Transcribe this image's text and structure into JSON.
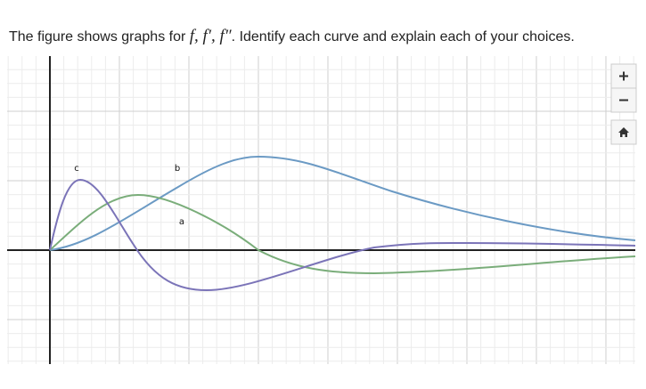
{
  "question": {
    "text_before": "The figure shows graphs for ",
    "math": "f, f′, f″",
    "text_after": ". Identify each curve and explain each of your choices."
  },
  "graph": {
    "curve_labels": [
      "a",
      "b",
      "c"
    ]
  }
}
